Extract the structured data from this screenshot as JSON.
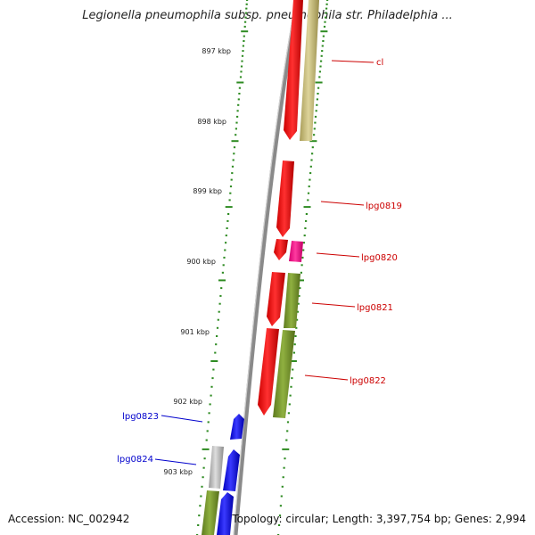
{
  "title": "Legionella pneumophila subsp. pneumophila str. Philadelphia ...",
  "accession": "Accession: NC_002942",
  "summary": "Topology: circular; Length: 3,397,754 bp; Genes: 2,994",
  "colors": {
    "tick": "#2e8b22",
    "backbone": "#8a8a8a",
    "gene_red": "#ff0000",
    "gene_pink": "#ff1493",
    "gene_khaki": "#c9bf7a",
    "gene_olive": "#7a9a2e",
    "gene_blue": "#0000ff",
    "gene_gray": "#b8b8b8",
    "label_red": "#cc0000",
    "label_blue": "#0000cc"
  },
  "ruler": {
    "labels": [
      "897 kbp",
      "898 kbp",
      "899 kbp",
      "900 kbp",
      "901 kbp",
      "902 kbp",
      "903 kbp"
    ]
  },
  "gene_labels": {
    "right": [
      "cl",
      "lpg0819",
      "lpg0820",
      "lpg0821",
      "lpg0822"
    ],
    "left": [
      "lpg0823",
      "lpg0824"
    ]
  }
}
